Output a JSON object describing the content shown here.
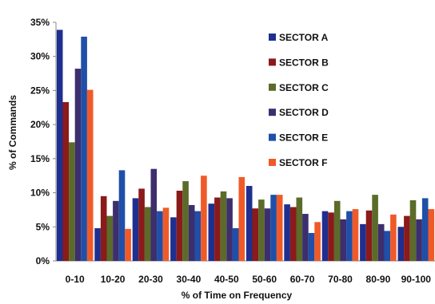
{
  "chart_data": {
    "type": "bar",
    "xlabel": "% of Time on Frequency",
    "ylabel": "% of Commands",
    "ylim": [
      0,
      35
    ],
    "y_ticks": [
      "0%",
      "5%",
      "10%",
      "15%",
      "20%",
      "25%",
      "30%",
      "35%"
    ],
    "grid": false,
    "legend_position": "right",
    "categories": [
      "0-10",
      "10-20",
      "20-30",
      "30-40",
      "40-50",
      "50-60",
      "60-70",
      "70-80",
      "80-90",
      "90-100"
    ],
    "series": [
      {
        "name": "SECTOR A",
        "color": "#1f2f8f",
        "values": [
          33.9,
          4.8,
          9.2,
          6.4,
          8.4,
          11.0,
          8.3,
          7.3,
          5.4,
          5.0
        ]
      },
      {
        "name": "SECTOR B",
        "color": "#8b1a1a",
        "values": [
          23.3,
          9.5,
          10.6,
          10.3,
          9.3,
          7.7,
          7.9,
          7.1,
          7.4,
          6.6
        ]
      },
      {
        "name": "SECTOR C",
        "color": "#5b6b2a",
        "values": [
          17.4,
          6.6,
          7.9,
          11.7,
          10.2,
          9.0,
          9.3,
          8.8,
          9.7,
          8.9
        ]
      },
      {
        "name": "SECTOR D",
        "color": "#3d2e6e",
        "values": [
          28.2,
          8.8,
          13.5,
          8.2,
          9.2,
          7.7,
          6.9,
          6.1,
          5.4,
          6.1
        ]
      },
      {
        "name": "SECTOR E",
        "color": "#1f4fa8",
        "values": [
          32.9,
          13.3,
          7.3,
          7.3,
          4.8,
          9.7,
          4.1,
          7.3,
          4.4,
          9.2
        ]
      },
      {
        "name": "SECTOR F",
        "color": "#f05a28",
        "values": [
          25.1,
          4.7,
          7.8,
          12.5,
          12.3,
          9.7,
          5.7,
          7.6,
          6.8,
          7.6
        ]
      }
    ]
  }
}
